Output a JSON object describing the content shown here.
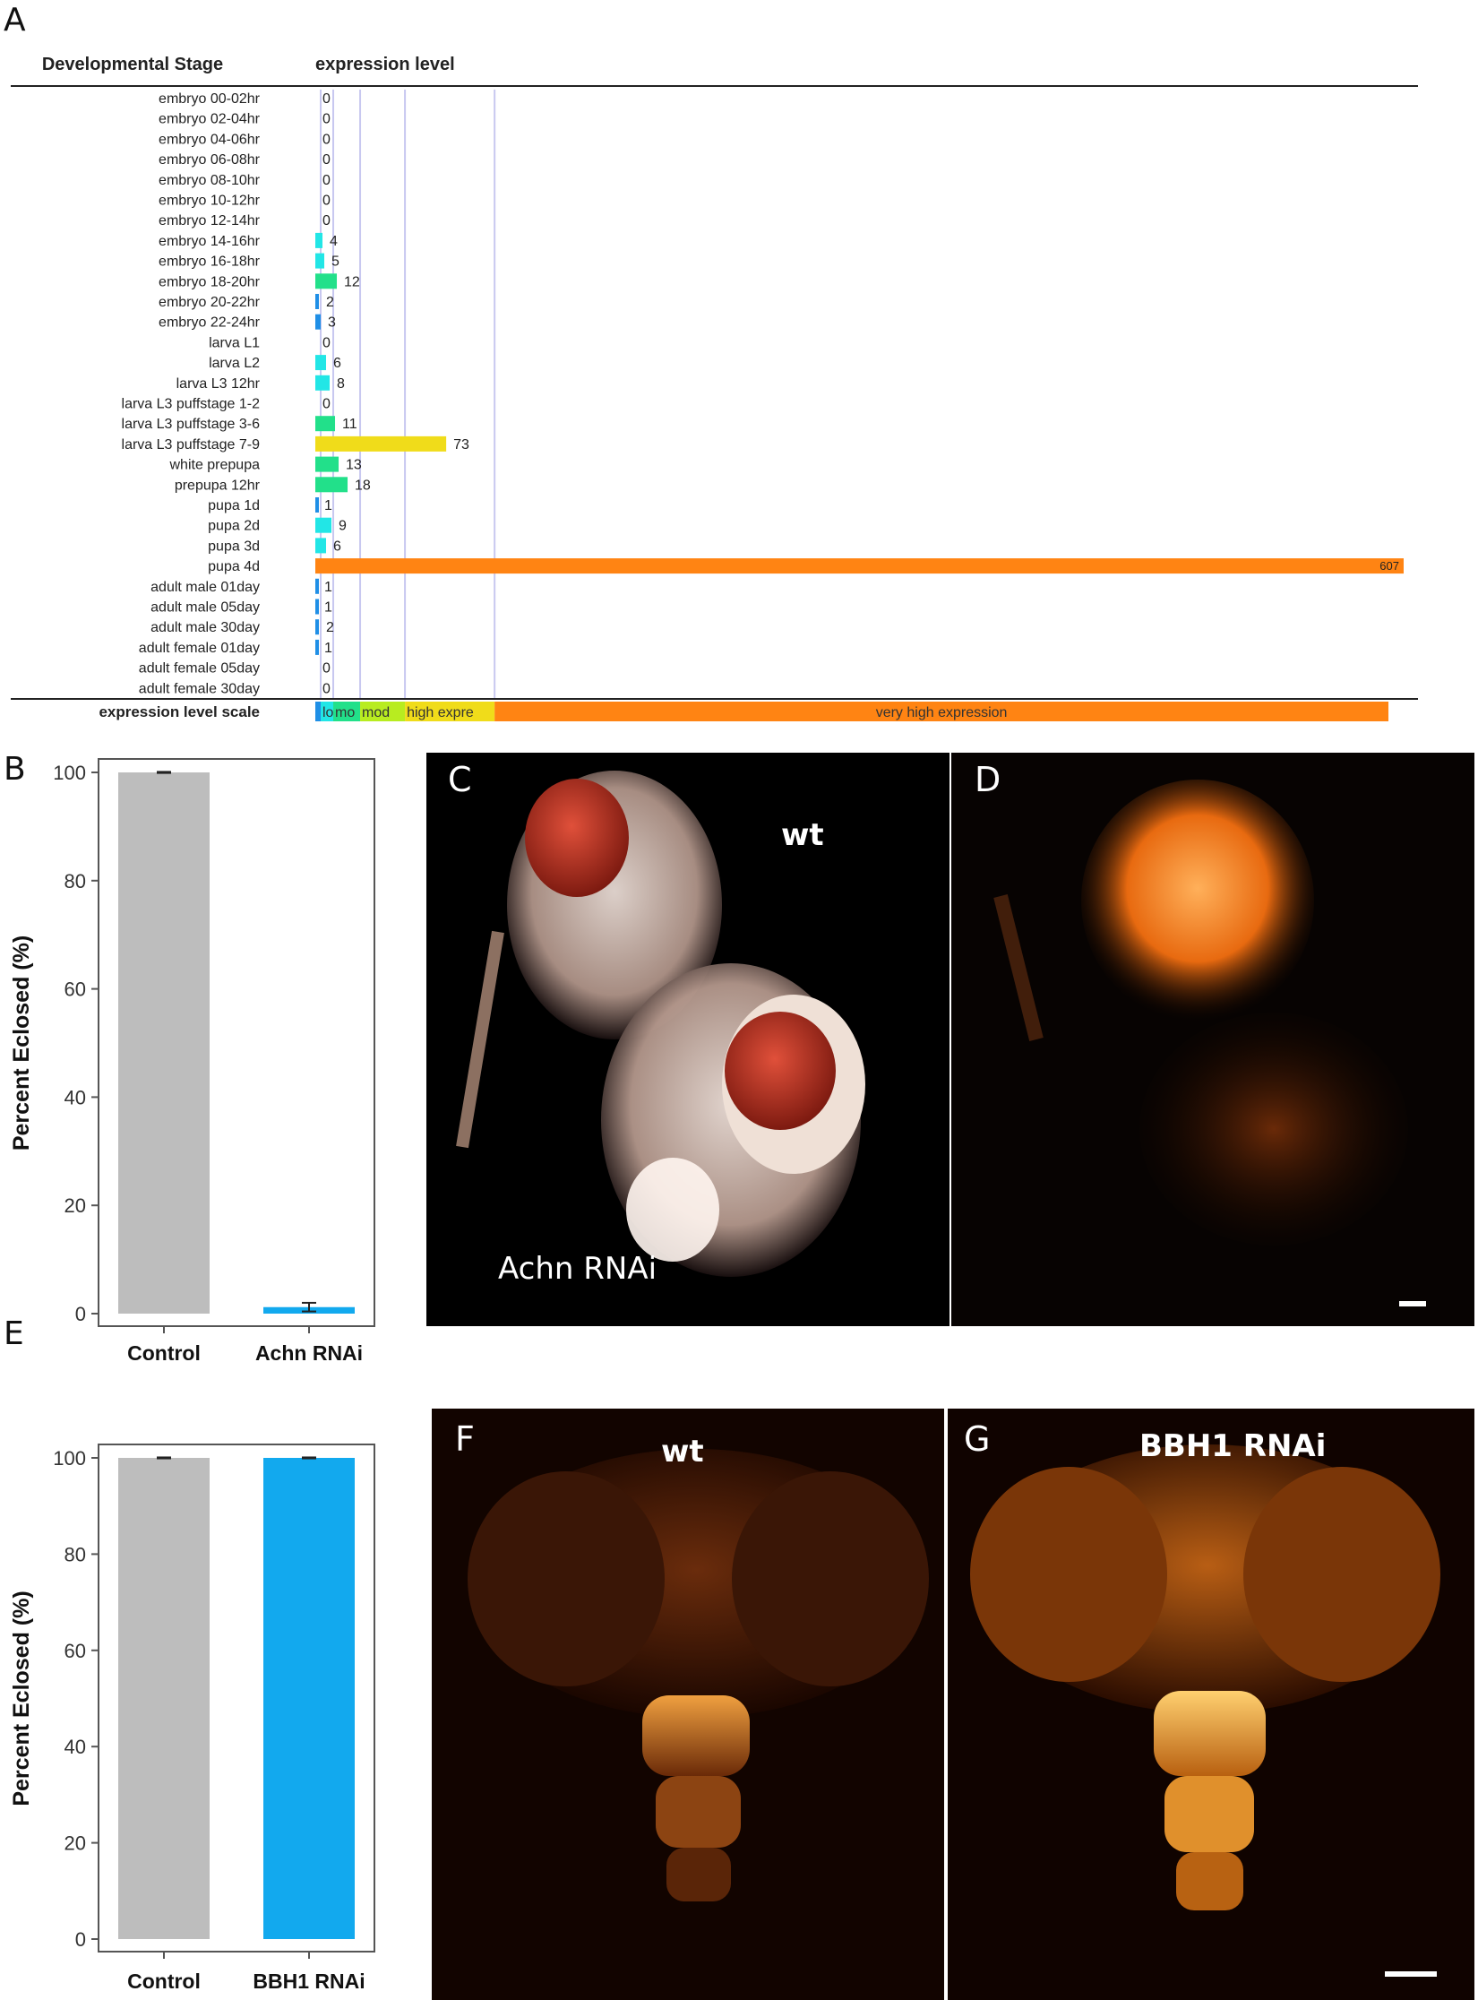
{
  "panel_letters": {
    "a": "A",
    "b": "B",
    "c": "C",
    "d": "D",
    "e": "E",
    "f": "F",
    "g": "G"
  },
  "chart_data": [
    {
      "type": "bar",
      "orientation": "horizontal",
      "panel": "A",
      "col_header_stage": "Developmental Stage",
      "col_header_level": "expression level",
      "scale_label": "expression level scale",
      "categories": [
        "embryo 00-02hr",
        "embryo 02-04hr",
        "embryo 04-06hr",
        "embryo 06-08hr",
        "embryo 08-10hr",
        "embryo 10-12hr",
        "embryo 12-14hr",
        "embryo 14-16hr",
        "embryo 16-18hr",
        "embryo 18-20hr",
        "embryo 20-22hr",
        "embryo 22-24hr",
        "larva L1",
        "larva L2",
        "larva L3 12hr",
        "larva L3 puffstage 1-2",
        "larva L3 puffstage 3-6",
        "larva L3 puffstage 7-9",
        "white prepupa",
        "prepupa 12hr",
        "pupa 1d",
        "pupa 2d",
        "pupa 3d",
        "pupa 4d",
        "adult male 01day",
        "adult male 05day",
        "adult male 30day",
        "adult female 01day",
        "adult female 05day",
        "adult female 30day"
      ],
      "values": [
        0,
        0,
        0,
        0,
        0,
        0,
        0,
        4,
        5,
        12,
        2,
        3,
        0,
        6,
        8,
        0,
        11,
        73,
        13,
        18,
        1,
        9,
        6,
        607,
        1,
        1,
        2,
        1,
        0,
        0
      ],
      "xlim": [
        0,
        607
      ],
      "scale_segments": [
        {
          "label": "",
          "max": 3,
          "color": "#1f8fe6"
        },
        {
          "label": "lo",
          "max": 10,
          "color": "#22e6e6"
        },
        {
          "label": "mo",
          "max": 25,
          "color": "#22e08a"
        },
        {
          "label": "mod",
          "max": 50,
          "color": "#b8ec20"
        },
        {
          "label": "high expre",
          "max": 100,
          "color": "#f0dc1a"
        },
        {
          "label": "very high expression",
          "max": 607,
          "color": "#ff8413"
        }
      ]
    },
    {
      "type": "bar",
      "panel": "B",
      "categories": [
        "Control",
        "Achn RNAi"
      ],
      "values": [
        100,
        1.2
      ],
      "errors": [
        0.1,
        0.8
      ],
      "colors": [
        "#bdbdbd",
        "#12a9ee"
      ],
      "ylabel": "Percent Eclosed (%)",
      "ylim": [
        0,
        100
      ],
      "yticks": [
        0,
        20,
        40,
        60,
        80,
        100
      ]
    },
    {
      "type": "bar",
      "panel": "E",
      "categories": [
        "Control",
        "BBH1 RNAi"
      ],
      "values": [
        100,
        100
      ],
      "errors": [
        0.1,
        0.1
      ],
      "colors": [
        "#bdbdbd",
        "#12a9ee"
      ],
      "ylabel": "Percent Eclosed (%)",
      "ylim": [
        0,
        100
      ],
      "yticks": [
        0,
        20,
        40,
        60,
        80,
        100
      ]
    }
  ],
  "photos": {
    "c_wt": "wt",
    "c_rnai": "Achn RNAi",
    "f_wt": "wt",
    "g_rnai": "BBH1 RNAi"
  }
}
